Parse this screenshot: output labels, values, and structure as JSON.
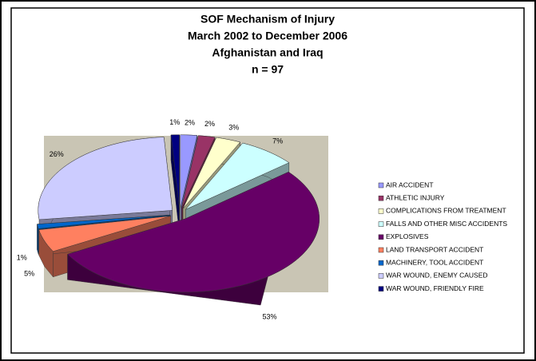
{
  "chart_data": {
    "type": "pie",
    "title": [
      "SOF Mechanism of Injury",
      "March 2002 to December 2006",
      "Afghanistan and Iraq",
      "n = 97"
    ],
    "categories": [
      "AIR ACCIDENT",
      "ATHLETIC INJURY",
      "COMPLICATIONS FROM TREATMENT",
      "FALLS AND OTHER MISC ACCIDENTS",
      "EXPLOSIVES",
      "LAND TRANSPORT ACCIDENT",
      "MACHINERY, TOOL ACCIDENT",
      "WAR WOUND, ENEMY CAUSED",
      "WAR WOUND, FRIENDLY FIRE"
    ],
    "values": [
      2,
      2,
      3,
      7,
      53,
      5,
      1,
      26,
      1
    ],
    "value_labels": [
      "2%",
      "2%",
      "3%",
      "7%",
      "53%",
      "5%",
      "1%",
      "26%",
      "1%"
    ],
    "colors": [
      "#9999ff",
      "#993366",
      "#ffffcc",
      "#ccffff",
      "#660066",
      "#ff8060",
      "#0066cc",
      "#ccccff",
      "#000080"
    ],
    "legend": "right"
  }
}
